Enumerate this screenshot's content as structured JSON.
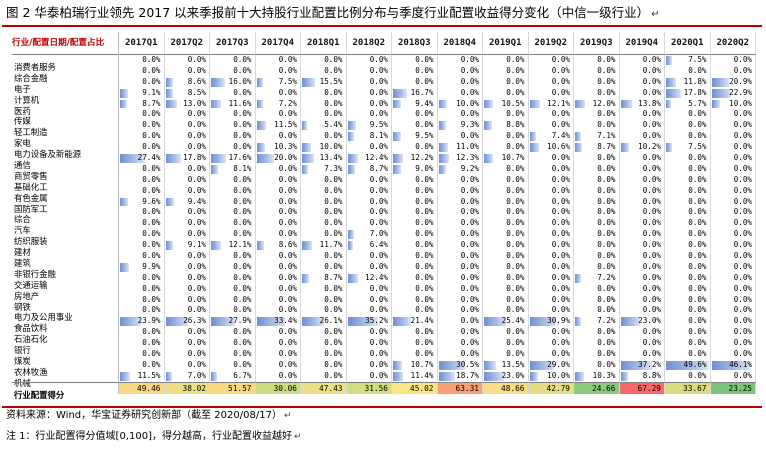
{
  "title": "图 2 华泰柏瑞行业领先 2017 以来季报前十大持股行业配置比例分布与季度行业配置收益得分变化（中信一级行业）",
  "return_mark": "↵",
  "header_label": "行业/配置日期/配置占比",
  "quarters": [
    "2017Q1",
    "2017Q2",
    "2017Q3",
    "2017Q4",
    "2018Q1",
    "2018Q2",
    "2018Q3",
    "2018Q4",
    "2019Q1",
    "2019Q2",
    "2019Q3",
    "2019Q4",
    "2020Q1",
    "2020Q2"
  ],
  "bar_scale_max": 50,
  "industries": [
    {
      "name": "消费者服务",
      "values": [
        "0.0%",
        "0.0%",
        "0.0%",
        "0.0%",
        "0.0%",
        "0.0%",
        "0.0%",
        "0.0%",
        "0.0%",
        "0.0%",
        "0.0%",
        "0.0%",
        "7.5%",
        "0.0%"
      ]
    },
    {
      "name": "综合金融",
      "values": [
        "0.0%",
        "0.0%",
        "0.0%",
        "0.0%",
        "0.0%",
        "0.0%",
        "0.0%",
        "0.0%",
        "0.0%",
        "0.0%",
        "0.0%",
        "0.0%",
        "0.0%",
        "0.0%"
      ]
    },
    {
      "name": "电子",
      "values": [
        "0.0%",
        "8.6%",
        "16.0%",
        "7.5%",
        "15.5%",
        "0.0%",
        "0.0%",
        "0.0%",
        "0.0%",
        "0.0%",
        "0.0%",
        "0.0%",
        "11.8%",
        "20.9%"
      ]
    },
    {
      "name": "计算机",
      "values": [
        "9.1%",
        "8.5%",
        "0.0%",
        "0.0%",
        "0.0%",
        "0.0%",
        "16.7%",
        "0.0%",
        "0.0%",
        "0.0%",
        "0.0%",
        "0.0%",
        "17.8%",
        "22.9%"
      ]
    },
    {
      "name": "医药",
      "values": [
        "8.7%",
        "13.0%",
        "11.6%",
        "7.2%",
        "0.0%",
        "0.0%",
        "9.4%",
        "10.0%",
        "10.5%",
        "12.1%",
        "12.0%",
        "13.8%",
        "5.7%",
        "10.0%"
      ]
    },
    {
      "name": "传媒",
      "values": [
        "0.0%",
        "0.0%",
        "0.0%",
        "0.0%",
        "0.0%",
        "0.0%",
        "0.0%",
        "0.0%",
        "0.0%",
        "0.0%",
        "0.0%",
        "0.0%",
        "0.0%",
        "0.0%"
      ]
    },
    {
      "name": "轻工制造",
      "values": [
        "0.0%",
        "0.0%",
        "0.0%",
        "11.5%",
        "5.4%",
        "9.5%",
        "0.0%",
        "9.3%",
        "8.8%",
        "0.0%",
        "0.0%",
        "0.0%",
        "0.0%",
        "0.0%"
      ]
    },
    {
      "name": "家电",
      "values": [
        "0.0%",
        "0.0%",
        "0.0%",
        "0.0%",
        "0.0%",
        "8.1%",
        "9.5%",
        "0.0%",
        "0.0%",
        "7.4%",
        "7.1%",
        "0.0%",
        "0.0%",
        "0.0%"
      ]
    },
    {
      "name": "电力设备及新能源",
      "values": [
        "0.0%",
        "0.0%",
        "0.0%",
        "10.3%",
        "10.0%",
        "0.0%",
        "0.0%",
        "11.0%",
        "0.0%",
        "10.6%",
        "8.7%",
        "10.2%",
        "7.5%",
        "0.0%"
      ]
    },
    {
      "name": "通信",
      "values": [
        "27.4%",
        "17.8%",
        "17.6%",
        "20.0%",
        "13.4%",
        "12.4%",
        "12.2%",
        "12.3%",
        "10.7%",
        "0.0%",
        "0.0%",
        "0.0%",
        "0.0%",
        "0.0%"
      ]
    },
    {
      "name": "商贸零售",
      "values": [
        "0.0%",
        "0.0%",
        "8.1%",
        "0.0%",
        "7.3%",
        "8.7%",
        "9.0%",
        "9.2%",
        "0.0%",
        "0.0%",
        "0.0%",
        "0.0%",
        "0.0%",
        "0.0%"
      ]
    },
    {
      "name": "基础化工",
      "values": [
        "0.0%",
        "0.0%",
        "0.0%",
        "0.0%",
        "0.0%",
        "0.0%",
        "0.0%",
        "0.0%",
        "0.0%",
        "0.0%",
        "0.0%",
        "0.0%",
        "0.0%",
        "0.0%"
      ]
    },
    {
      "name": "有色金属",
      "values": [
        "0.0%",
        "0.0%",
        "0.0%",
        "0.0%",
        "0.0%",
        "0.0%",
        "0.0%",
        "0.0%",
        "0.0%",
        "0.0%",
        "0.0%",
        "0.0%",
        "0.0%",
        "0.0%"
      ]
    },
    {
      "name": "国防军工",
      "values": [
        "9.6%",
        "9.4%",
        "0.0%",
        "0.0%",
        "0.0%",
        "0.0%",
        "0.0%",
        "0.0%",
        "0.0%",
        "0.0%",
        "0.0%",
        "0.0%",
        "0.0%",
        "0.0%"
      ]
    },
    {
      "name": "综合",
      "values": [
        "0.0%",
        "0.0%",
        "0.0%",
        "0.0%",
        "0.0%",
        "0.0%",
        "0.0%",
        "0.0%",
        "0.0%",
        "0.0%",
        "0.0%",
        "0.0%",
        "0.0%",
        "0.0%"
      ]
    },
    {
      "name": "汽车",
      "values": [
        "0.0%",
        "0.0%",
        "0.0%",
        "0.0%",
        "0.0%",
        "0.0%",
        "0.0%",
        "0.0%",
        "0.0%",
        "0.0%",
        "0.0%",
        "0.0%",
        "0.0%",
        "0.0%"
      ]
    },
    {
      "name": "纺织服装",
      "values": [
        "0.0%",
        "0.0%",
        "0.0%",
        "0.0%",
        "0.0%",
        "7.0%",
        "0.0%",
        "0.0%",
        "0.0%",
        "0.0%",
        "0.0%",
        "0.0%",
        "0.0%",
        "0.0%"
      ]
    },
    {
      "name": "建材",
      "values": [
        "0.0%",
        "9.1%",
        "12.1%",
        "8.6%",
        "11.7%",
        "6.4%",
        "0.0%",
        "0.0%",
        "0.0%",
        "0.0%",
        "0.0%",
        "0.0%",
        "0.0%",
        "0.0%"
      ]
    },
    {
      "name": "建筑",
      "values": [
        "0.0%",
        "0.0%",
        "0.0%",
        "0.0%",
        "0.0%",
        "0.0%",
        "0.0%",
        "0.0%",
        "0.0%",
        "0.0%",
        "0.0%",
        "0.0%",
        "0.0%",
        "0.0%"
      ]
    },
    {
      "name": "非银行金融",
      "values": [
        "9.9%",
        "0.0%",
        "0.0%",
        "0.0%",
        "0.0%",
        "0.0%",
        "0.0%",
        "0.0%",
        "0.0%",
        "0.0%",
        "0.0%",
        "0.0%",
        "0.0%",
        "0.0%"
      ]
    },
    {
      "name": "交通运输",
      "values": [
        "0.0%",
        "0.0%",
        "0.0%",
        "0.0%",
        "8.7%",
        "12.4%",
        "0.0%",
        "0.0%",
        "0.0%",
        "0.0%",
        "7.2%",
        "0.0%",
        "0.0%",
        "0.0%"
      ]
    },
    {
      "name": "房地产",
      "values": [
        "0.0%",
        "0.0%",
        "0.0%",
        "0.0%",
        "0.0%",
        "0.0%",
        "0.0%",
        "0.0%",
        "0.0%",
        "0.0%",
        "0.0%",
        "0.0%",
        "0.0%",
        "0.0%"
      ]
    },
    {
      "name": "钢铁",
      "values": [
        "0.0%",
        "0.0%",
        "0.0%",
        "0.0%",
        "0.0%",
        "0.0%",
        "0.0%",
        "0.0%",
        "0.0%",
        "0.0%",
        "0.0%",
        "0.0%",
        "0.0%",
        "0.0%"
      ]
    },
    {
      "name": "电力及公用事业",
      "values": [
        "0.0%",
        "0.0%",
        "0.0%",
        "0.0%",
        "0.0%",
        "0.0%",
        "0.0%",
        "0.0%",
        "0.0%",
        "0.0%",
        "0.0%",
        "0.0%",
        "0.0%",
        "0.0%"
      ]
    },
    {
      "name": "食品饮料",
      "values": [
        "23.9%",
        "26.3%",
        "27.9%",
        "33.4%",
        "26.1%",
        "35.2%",
        "21.4%",
        "0.0%",
        "25.4%",
        "30.9%",
        "7.2%",
        "23.0%",
        "0.0%",
        "0.0%"
      ]
    },
    {
      "name": "石油石化",
      "values": [
        "0.0%",
        "0.0%",
        "0.0%",
        "0.0%",
        "0.0%",
        "0.0%",
        "0.0%",
        "0.0%",
        "0.0%",
        "0.0%",
        "0.0%",
        "0.0%",
        "0.0%",
        "0.0%"
      ]
    },
    {
      "name": "银行",
      "values": [
        "0.0%",
        "0.0%",
        "0.0%",
        "0.0%",
        "0.0%",
        "0.0%",
        "0.0%",
        "0.0%",
        "0.0%",
        "0.0%",
        "0.0%",
        "0.0%",
        "0.0%",
        "0.0%"
      ]
    },
    {
      "name": "煤炭",
      "values": [
        "0.0%",
        "0.0%",
        "0.0%",
        "0.0%",
        "0.0%",
        "0.0%",
        "0.0%",
        "0.0%",
        "0.0%",
        "0.0%",
        "0.0%",
        "0.0%",
        "0.0%",
        "0.0%"
      ]
    },
    {
      "name": "农林牧渔",
      "values": [
        "0.0%",
        "0.0%",
        "0.0%",
        "0.0%",
        "0.0%",
        "0.0%",
        "10.7%",
        "30.5%",
        "13.5%",
        "29.0%",
        "0.0%",
        "37.2%",
        "49.6%",
        "46.1%"
      ]
    },
    {
      "name": "机械",
      "values": [
        "11.5%",
        "7.0%",
        "6.7%",
        "0.0%",
        "0.0%",
        "0.0%",
        "11.4%",
        "18.7%",
        "23.0%",
        "10.0%",
        "10.3%",
        "8.8%",
        "0.0%",
        "0.0%"
      ]
    }
  ],
  "score_row": {
    "name": "行业配置得分",
    "values": [
      "49.46",
      "38.02",
      "51.57",
      "30.06",
      "47.43",
      "31.56",
      "45.02",
      "63.31",
      "48.66",
      "42.79",
      "24.66",
      "67.29",
      "33.67",
      "23.25"
    ],
    "colors": [
      "#fbd983",
      "#ede087",
      "#fbd983",
      "#cbdc81",
      "#ede087",
      "#d2de81",
      "#fde485",
      "#f8a076",
      "#f9dd84",
      "#e4dd83",
      "#8cca7d",
      "#f8696b",
      "#dcdb82",
      "#7dc57c"
    ]
  },
  "source": "资料来源：Wind，华宝证券研究创新部（截至 2020/08/17）",
  "note": "注 1：行业配置得分值域[0,100]，得分越高，行业配置收益越好"
}
